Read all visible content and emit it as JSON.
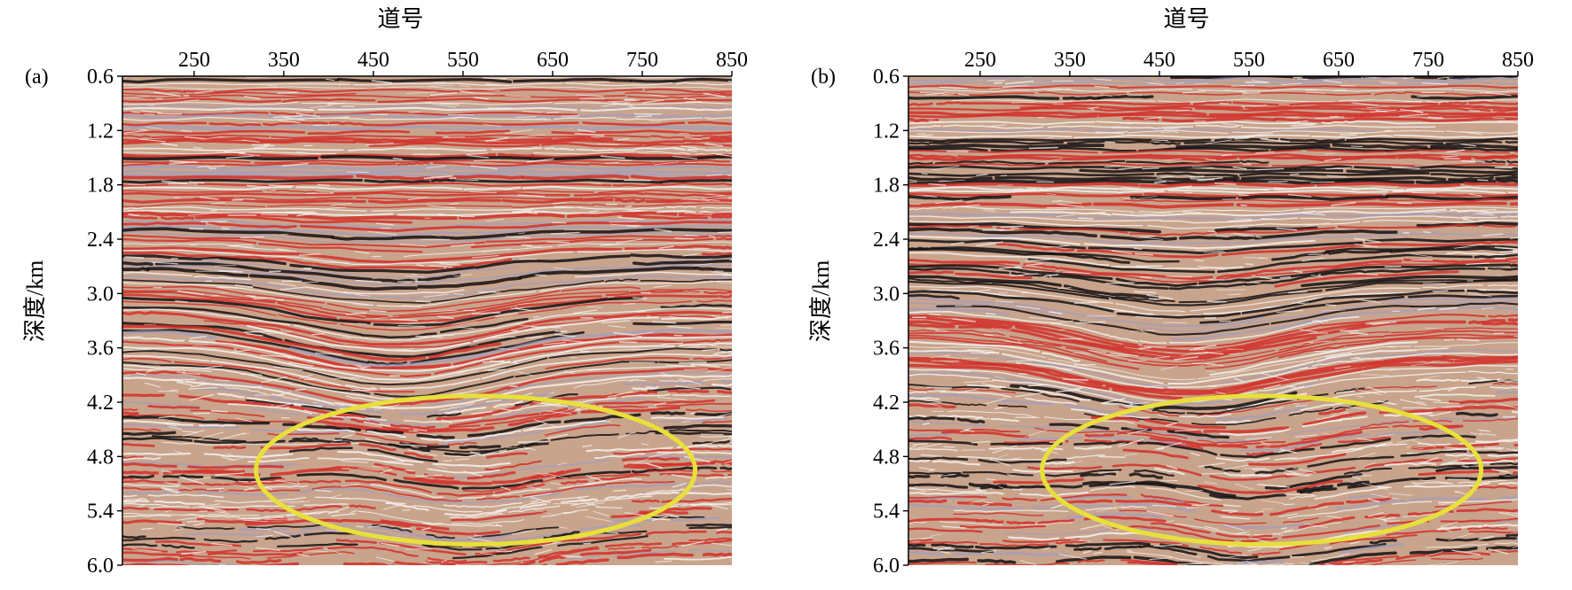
{
  "panels": [
    {
      "label": "(a)",
      "x_title": "道号",
      "y_title": "深度/km",
      "x_ticks": [
        "250",
        "350",
        "450",
        "550",
        "650",
        "750",
        "850"
      ],
      "y_ticks": [
        "0.6",
        "1.2",
        "1.8",
        "2.4",
        "3.0",
        "3.6",
        "4.2",
        "4.8",
        "5.4",
        "6.0"
      ],
      "x_range": [
        170,
        850
      ],
      "y_range": [
        0.6,
        6.0
      ],
      "ellipse": {
        "trace_center": 564,
        "depth_center": 4.95,
        "trace_half_width": 245,
        "depth_half_height": 0.82,
        "color": "#e8e03a"
      },
      "seed": 7
    },
    {
      "label": "(b)",
      "x_title": "道号",
      "y_title": "深度/km",
      "x_ticks": [
        "250",
        "350",
        "450",
        "550",
        "650",
        "750",
        "850"
      ],
      "y_ticks": [
        "0.6",
        "1.2",
        "1.8",
        "2.4",
        "3.0",
        "3.6",
        "4.2",
        "4.8",
        "5.4",
        "6.0"
      ],
      "x_range": [
        170,
        850
      ],
      "y_range": [
        0.6,
        6.0
      ],
      "ellipse": {
        "trace_center": 564,
        "depth_center": 4.95,
        "trace_half_width": 245,
        "depth_half_height": 0.82,
        "color": "#e8e03a"
      },
      "seed": 19
    }
  ],
  "colors": {
    "background": "#c9a48c",
    "positive": "#d2302a",
    "strong": "#141012",
    "negative": "#f4f2ee",
    "blue": "#9a9cc8"
  }
}
